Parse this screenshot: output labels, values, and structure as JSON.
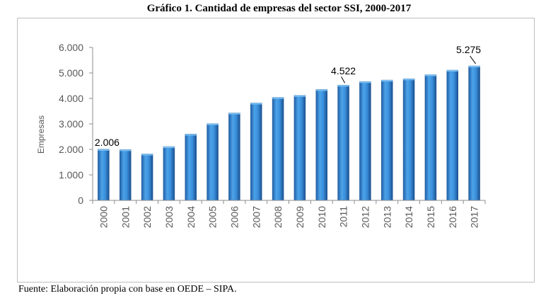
{
  "title": "Gráfico 1. Cantidad de empresas del sector SSI, 2000-2017",
  "source": "Fuente: Elaboración propia con base en OEDE – SIPA.",
  "chart_data": {
    "type": "bar",
    "title": "Gráfico 1. Cantidad de empresas del sector SSI, 2000-2017",
    "xlabel": "",
    "ylabel": "Empresas",
    "ylim": [
      0,
      6000
    ],
    "yticks": [
      0,
      1000,
      2000,
      3000,
      4000,
      5000,
      6000
    ],
    "ytick_labels": [
      "0",
      "1.000",
      "2.000",
      "3.000",
      "4.000",
      "5.000",
      "6.000"
    ],
    "categories": [
      "2000",
      "2001",
      "2002",
      "2003",
      "2004",
      "2005",
      "2006",
      "2007",
      "2008",
      "2009",
      "2010",
      "2011",
      "2012",
      "2013",
      "2014",
      "2015",
      "2016",
      "2017"
    ],
    "values": [
      2006,
      1990,
      1820,
      2110,
      2600,
      3010,
      3430,
      3820,
      4040,
      4120,
      4350,
      4522,
      4660,
      4720,
      4770,
      4930,
      5110,
      5275
    ],
    "bar_color": "#3d8fd6",
    "grid": false,
    "legend": "none",
    "annotations": [
      {
        "index": 0,
        "label": "2.006"
      },
      {
        "index": 11,
        "label": "4.522"
      },
      {
        "index": 17,
        "label": "5.275"
      }
    ]
  }
}
